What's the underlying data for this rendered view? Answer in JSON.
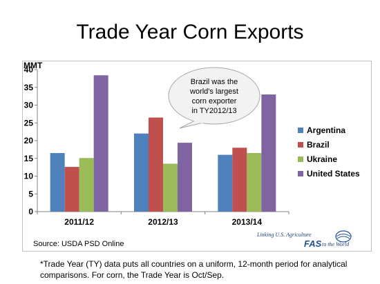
{
  "slide": {
    "title": "Trade Year Corn Exports",
    "footnote": "*Trade Year (TY) data puts all countries on a uniform, 12-month period for analytical comparisons.  For corn, the Trade Year is Oct/Sep."
  },
  "chart_data": {
    "type": "bar",
    "categories": [
      "2011/12",
      "2012/13",
      "2013/14"
    ],
    "series": [
      {
        "name": "Argentina",
        "values": [
          16.5,
          22.0,
          16.0
        ],
        "color": "#4f81bd"
      },
      {
        "name": "Brazil",
        "values": [
          12.6,
          26.5,
          18.0
        ],
        "color": "#c0504d"
      },
      {
        "name": "Ukraine",
        "values": [
          15.1,
          13.5,
          16.5
        ],
        "color": "#9bbb59"
      },
      {
        "name": "United States",
        "values": [
          38.4,
          19.4,
          33.0
        ],
        "color": "#8064a2"
      }
    ],
    "ylabel": "MMT",
    "ylim": [
      0,
      40
    ],
    "yticks": [
      "0",
      "5",
      "10",
      "15",
      "20",
      "25",
      "30",
      "35",
      "40"
    ],
    "grid": false,
    "legend": "right",
    "annotation": {
      "lines": [
        "Brazil was the",
        "world's largest",
        "corn exporter",
        "in TY2012/13"
      ]
    },
    "source": "Source: USDA PSD Online"
  },
  "logo": {
    "top_text": "Linking U.S. Agriculture",
    "fas": "FAS",
    "bottom_text": "to the World"
  }
}
